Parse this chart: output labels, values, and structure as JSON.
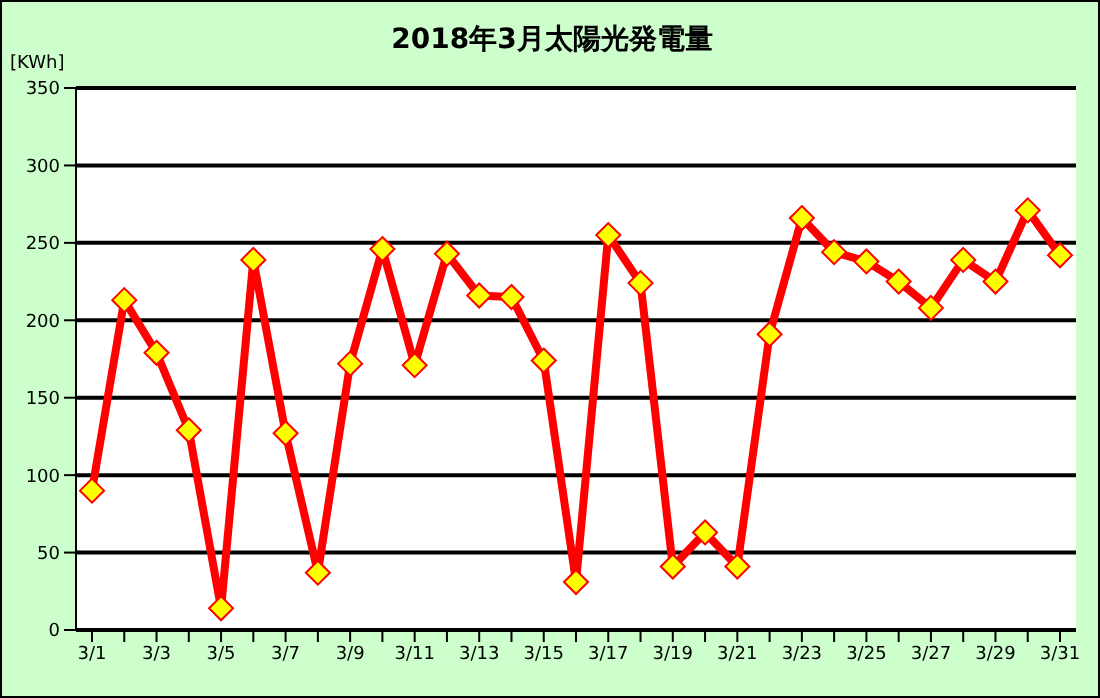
{
  "chart_data": {
    "type": "line",
    "title": "2018年3月太陽光発電量",
    "ylabel": "[KWh]",
    "categories": [
      "3/1",
      null,
      "3/3",
      null,
      "3/5",
      null,
      "3/7",
      null,
      "3/9",
      null,
      "3/11",
      null,
      "3/13",
      null,
      "3/15",
      null,
      "3/17",
      null,
      "3/19",
      null,
      "3/21",
      null,
      "3/23",
      null,
      "3/25",
      null,
      "3/27",
      null,
      "3/29",
      null,
      "3/31"
    ],
    "series": [
      {
        "color": "#ff0000",
        "values": [
          90,
          213,
          179,
          129,
          14,
          239,
          127,
          37,
          172,
          246,
          171,
          243,
          216,
          215,
          174,
          31,
          255,
          224,
          41,
          63,
          41,
          191,
          266,
          244,
          238,
          225,
          208,
          239,
          225,
          271,
          242
        ]
      }
    ],
    "ylim": [
      0,
      350
    ],
    "yticks": [
      0,
      50,
      100,
      150,
      200,
      250,
      300,
      350
    ],
    "grid": "y",
    "marker": "diamond",
    "line_style": "solid"
  }
}
